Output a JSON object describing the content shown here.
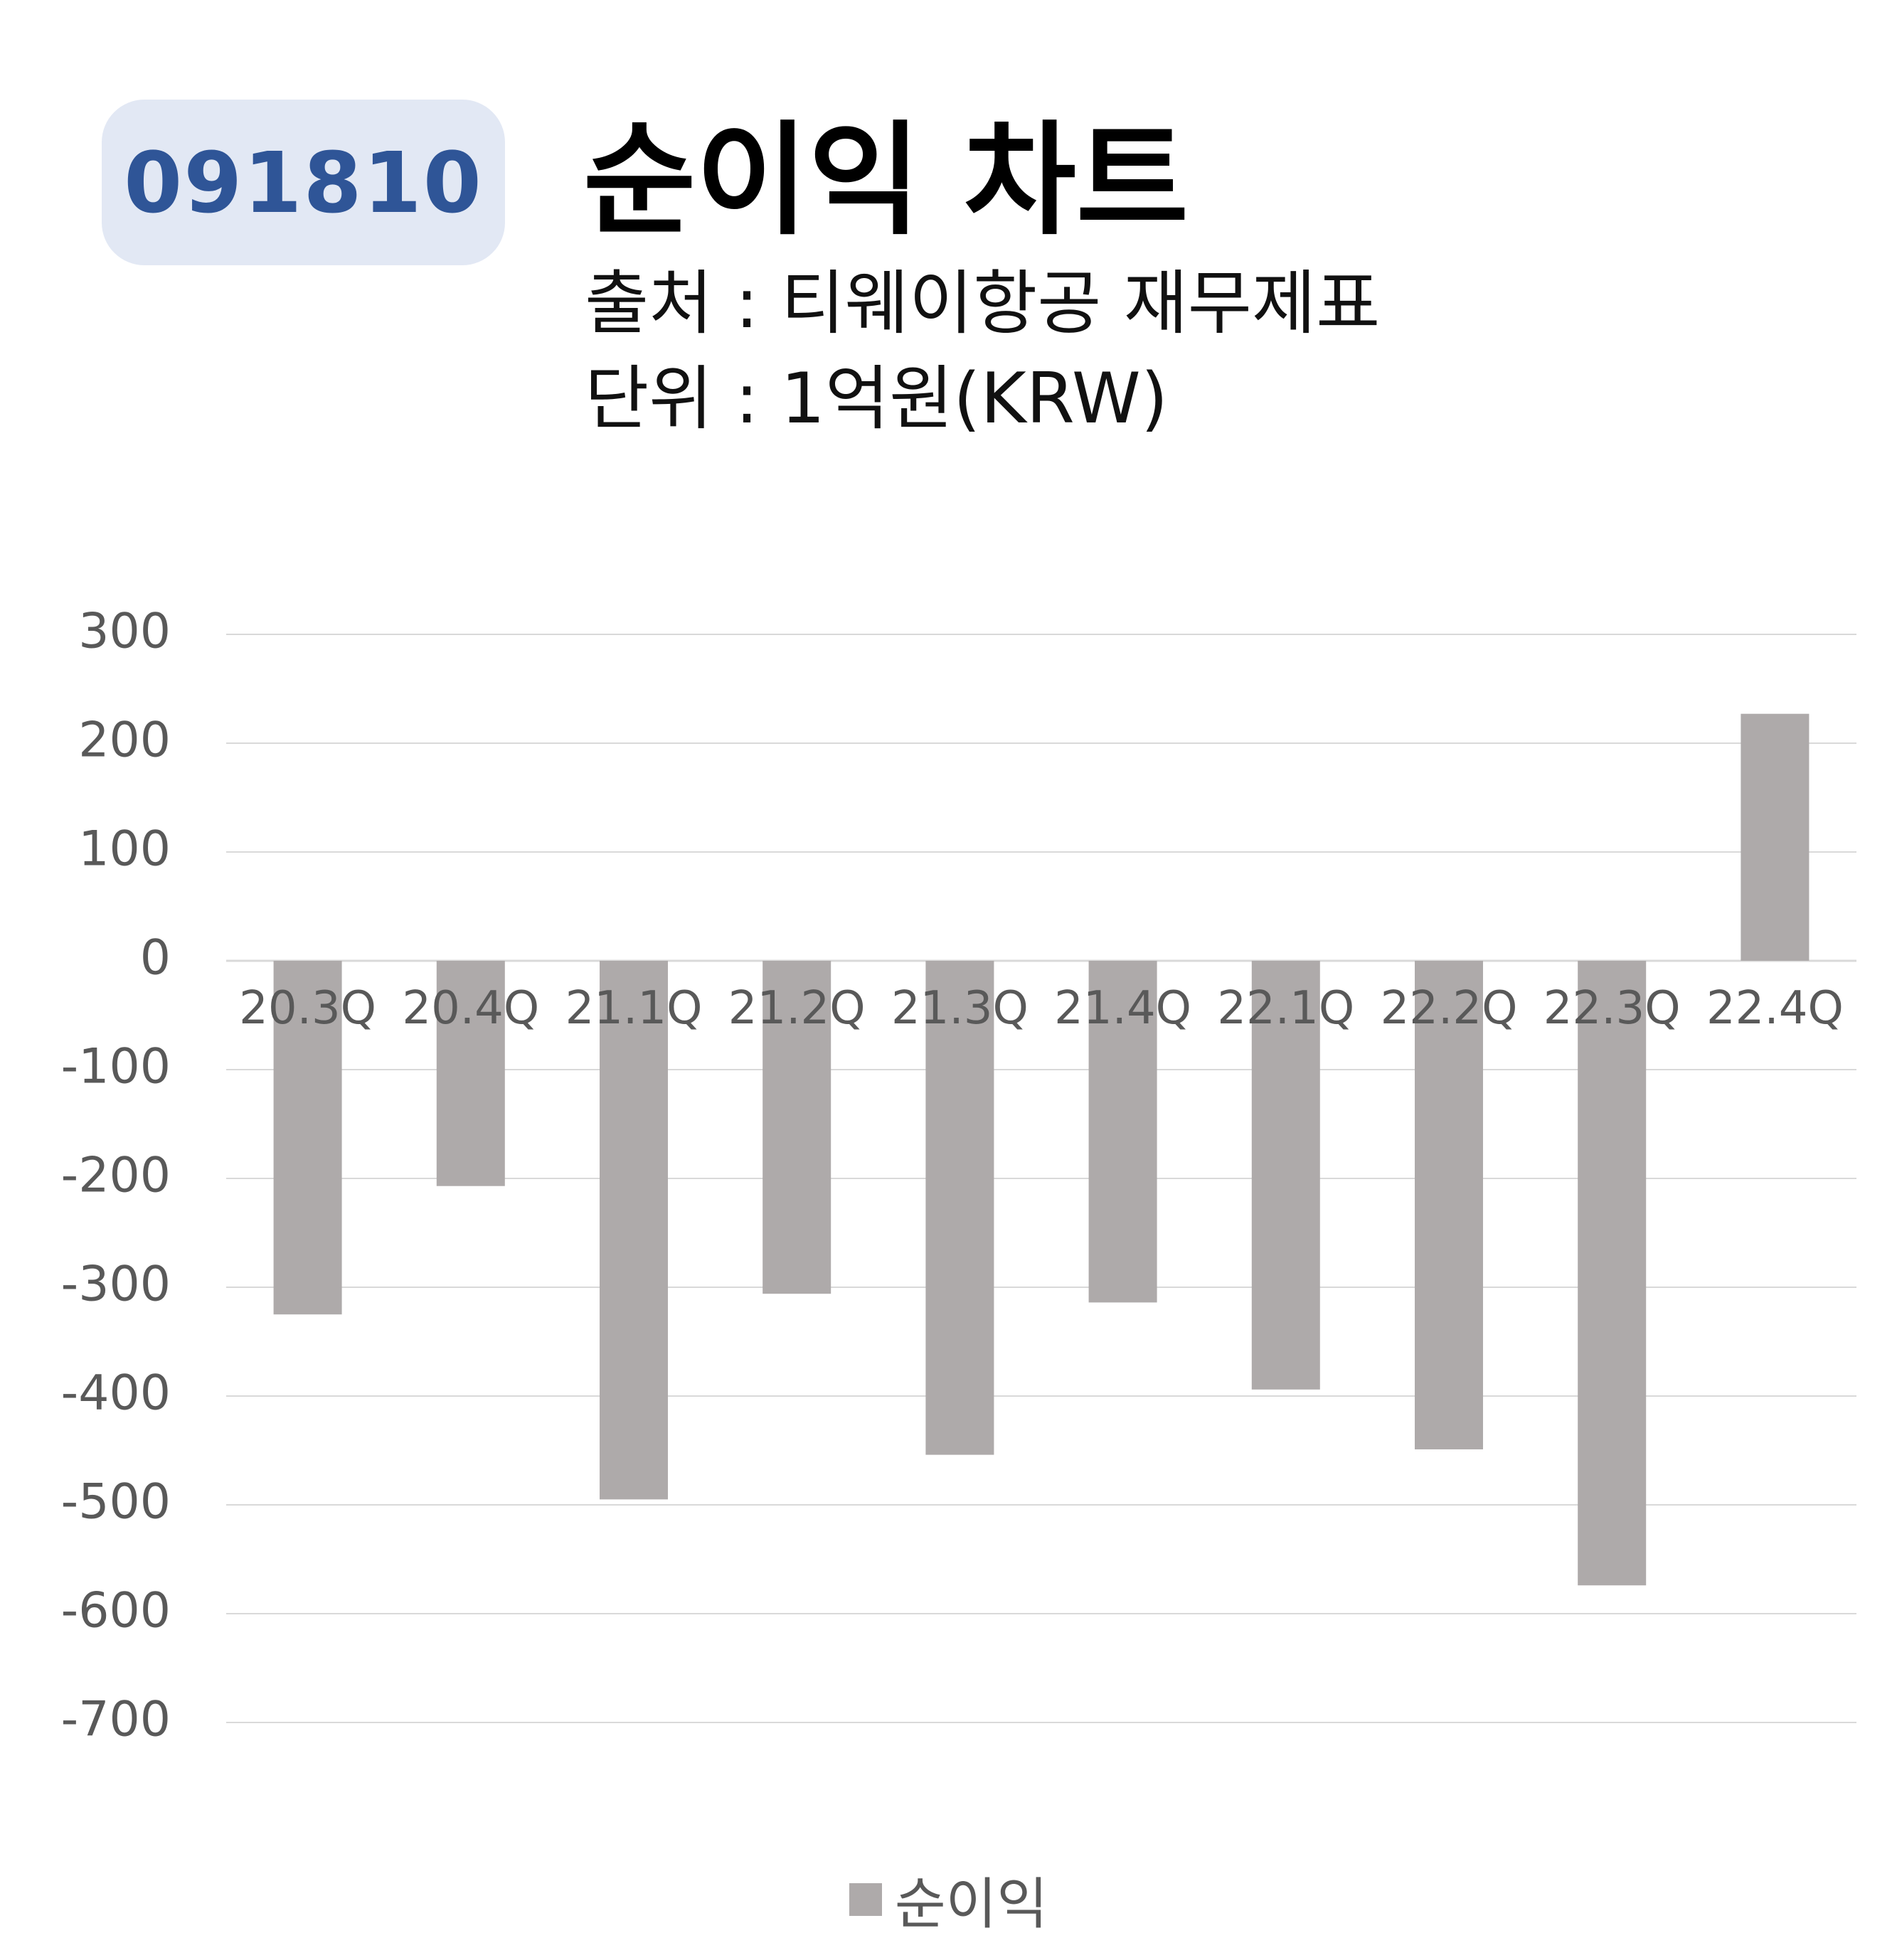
{
  "badge": "091810",
  "title": "순이익 차트",
  "source": "출처 : 티웨이항공 재무제표",
  "unit": "단위 : 1억원(KRW)",
  "chart_data": {
    "type": "bar",
    "categories": [
      "20.3Q",
      "20.4Q",
      "21.1Q",
      "21.2Q",
      "21.3Q",
      "21.4Q",
      "22.1Q",
      "22.2Q",
      "22.3Q",
      "22.4Q"
    ],
    "series": [
      {
        "name": "순이익",
        "values": [
          -325,
          -207,
          -495,
          -306,
          -454,
          -314,
          -394,
          -449,
          -574,
          227
        ]
      }
    ],
    "ylim": [
      -700,
      300
    ],
    "yticks": [
      300,
      200,
      100,
      0,
      -100,
      -200,
      -300,
      -400,
      -500,
      -600,
      -700
    ],
    "grid": true,
    "legend": "bottom-center",
    "bar_color": "#aeaaaa",
    "grid_color": "#d9d9d9",
    "badge_color": "#2f5597",
    "badge_bg": "#e2e8f4"
  }
}
